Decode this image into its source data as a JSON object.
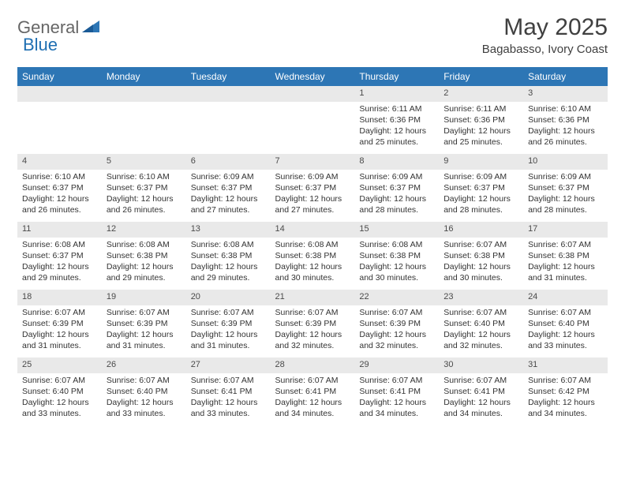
{
  "brand": {
    "word1": "General",
    "word2": "Blue"
  },
  "title": "May 2025",
  "subtitle": "Bagabasso, Ivory Coast",
  "colors": {
    "accent": "#2d76b5",
    "daybar": "#e9e9e9",
    "text": "#333333",
    "logo_gray": "#666666",
    "logo_blue": "#1f6fb2"
  },
  "day_headers": [
    "Sunday",
    "Monday",
    "Tuesday",
    "Wednesday",
    "Thursday",
    "Friday",
    "Saturday"
  ],
  "weeks": [
    [
      null,
      null,
      null,
      null,
      {
        "n": "1",
        "sunrise": "6:11 AM",
        "sunset": "6:36 PM",
        "daylight": "12 hours and 25 minutes."
      },
      {
        "n": "2",
        "sunrise": "6:11 AM",
        "sunset": "6:36 PM",
        "daylight": "12 hours and 25 minutes."
      },
      {
        "n": "3",
        "sunrise": "6:10 AM",
        "sunset": "6:36 PM",
        "daylight": "12 hours and 26 minutes."
      }
    ],
    [
      {
        "n": "4",
        "sunrise": "6:10 AM",
        "sunset": "6:37 PM",
        "daylight": "12 hours and 26 minutes."
      },
      {
        "n": "5",
        "sunrise": "6:10 AM",
        "sunset": "6:37 PM",
        "daylight": "12 hours and 26 minutes."
      },
      {
        "n": "6",
        "sunrise": "6:09 AM",
        "sunset": "6:37 PM",
        "daylight": "12 hours and 27 minutes."
      },
      {
        "n": "7",
        "sunrise": "6:09 AM",
        "sunset": "6:37 PM",
        "daylight": "12 hours and 27 minutes."
      },
      {
        "n": "8",
        "sunrise": "6:09 AM",
        "sunset": "6:37 PM",
        "daylight": "12 hours and 28 minutes."
      },
      {
        "n": "9",
        "sunrise": "6:09 AM",
        "sunset": "6:37 PM",
        "daylight": "12 hours and 28 minutes."
      },
      {
        "n": "10",
        "sunrise": "6:09 AM",
        "sunset": "6:37 PM",
        "daylight": "12 hours and 28 minutes."
      }
    ],
    [
      {
        "n": "11",
        "sunrise": "6:08 AM",
        "sunset": "6:37 PM",
        "daylight": "12 hours and 29 minutes."
      },
      {
        "n": "12",
        "sunrise": "6:08 AM",
        "sunset": "6:38 PM",
        "daylight": "12 hours and 29 minutes."
      },
      {
        "n": "13",
        "sunrise": "6:08 AM",
        "sunset": "6:38 PM",
        "daylight": "12 hours and 29 minutes."
      },
      {
        "n": "14",
        "sunrise": "6:08 AM",
        "sunset": "6:38 PM",
        "daylight": "12 hours and 30 minutes."
      },
      {
        "n": "15",
        "sunrise": "6:08 AM",
        "sunset": "6:38 PM",
        "daylight": "12 hours and 30 minutes."
      },
      {
        "n": "16",
        "sunrise": "6:07 AM",
        "sunset": "6:38 PM",
        "daylight": "12 hours and 30 minutes."
      },
      {
        "n": "17",
        "sunrise": "6:07 AM",
        "sunset": "6:38 PM",
        "daylight": "12 hours and 31 minutes."
      }
    ],
    [
      {
        "n": "18",
        "sunrise": "6:07 AM",
        "sunset": "6:39 PM",
        "daylight": "12 hours and 31 minutes."
      },
      {
        "n": "19",
        "sunrise": "6:07 AM",
        "sunset": "6:39 PM",
        "daylight": "12 hours and 31 minutes."
      },
      {
        "n": "20",
        "sunrise": "6:07 AM",
        "sunset": "6:39 PM",
        "daylight": "12 hours and 31 minutes."
      },
      {
        "n": "21",
        "sunrise": "6:07 AM",
        "sunset": "6:39 PM",
        "daylight": "12 hours and 32 minutes."
      },
      {
        "n": "22",
        "sunrise": "6:07 AM",
        "sunset": "6:39 PM",
        "daylight": "12 hours and 32 minutes."
      },
      {
        "n": "23",
        "sunrise": "6:07 AM",
        "sunset": "6:40 PM",
        "daylight": "12 hours and 32 minutes."
      },
      {
        "n": "24",
        "sunrise": "6:07 AM",
        "sunset": "6:40 PM",
        "daylight": "12 hours and 33 minutes."
      }
    ],
    [
      {
        "n": "25",
        "sunrise": "6:07 AM",
        "sunset": "6:40 PM",
        "daylight": "12 hours and 33 minutes."
      },
      {
        "n": "26",
        "sunrise": "6:07 AM",
        "sunset": "6:40 PM",
        "daylight": "12 hours and 33 minutes."
      },
      {
        "n": "27",
        "sunrise": "6:07 AM",
        "sunset": "6:41 PM",
        "daylight": "12 hours and 33 minutes."
      },
      {
        "n": "28",
        "sunrise": "6:07 AM",
        "sunset": "6:41 PM",
        "daylight": "12 hours and 34 minutes."
      },
      {
        "n": "29",
        "sunrise": "6:07 AM",
        "sunset": "6:41 PM",
        "daylight": "12 hours and 34 minutes."
      },
      {
        "n": "30",
        "sunrise": "6:07 AM",
        "sunset": "6:41 PM",
        "daylight": "12 hours and 34 minutes."
      },
      {
        "n": "31",
        "sunrise": "6:07 AM",
        "sunset": "6:42 PM",
        "daylight": "12 hours and 34 minutes."
      }
    ]
  ],
  "labels": {
    "sunrise": "Sunrise:",
    "sunset": "Sunset:",
    "daylight": "Daylight:"
  }
}
